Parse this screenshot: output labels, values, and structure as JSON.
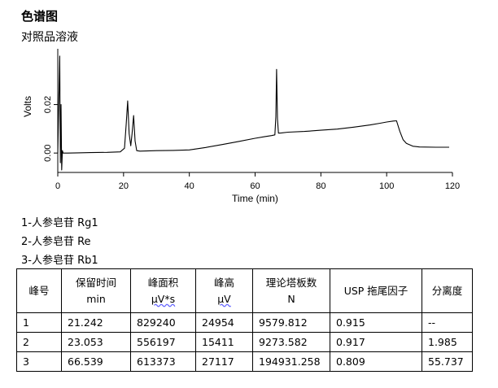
{
  "header": {
    "title": "色谱图",
    "subtitle": "对照品溶液"
  },
  "peak_list": [
    "1-人参皂苷 Rg1",
    "2-人参皂苷 Re",
    "3-人参皂苷 Rb1"
  ],
  "table": {
    "headers": [
      {
        "line1": "峰号",
        "line2": ""
      },
      {
        "line1": "保留时间",
        "line2": "min"
      },
      {
        "line1": "峰面积",
        "line2": "µV*s"
      },
      {
        "line1": "峰高",
        "line2": "µV"
      },
      {
        "line1": "理论塔板数",
        "line2": "N"
      },
      {
        "line1": "USP 拖尾因子",
        "line2": ""
      },
      {
        "line1": "分离度",
        "line2": ""
      }
    ],
    "rows": [
      [
        "1",
        "21.242",
        "829240",
        "24954",
        "9579.812",
        "0.915",
        "--"
      ],
      [
        "2",
        "23.053",
        "556197",
        "15411",
        "9273.582",
        "0.917",
        "1.985"
      ],
      [
        "3",
        "66.539",
        "613373",
        "27117",
        "194931.258",
        "0.809",
        "55.737"
      ]
    ]
  },
  "chart_data": {
    "type": "line",
    "xlabel": "Time (min)",
    "ylabel": "Volts",
    "xlim": [
      0,
      120
    ],
    "ylim": [
      -0.008,
      0.043
    ],
    "xticks": [
      0,
      20,
      40,
      60,
      80,
      100,
      120
    ],
    "xtick_labels": [
      "0",
      "20",
      "40",
      "60",
      "80",
      "100",
      "120"
    ],
    "yticks": [
      0.0,
      0.02
    ],
    "ytick_labels": [
      "0.00",
      "0.02"
    ],
    "grid": false,
    "line_color": "#000000",
    "series": [
      {
        "x": [
          0,
          0.6,
          0.8,
          1.0,
          1.2,
          1.4,
          1.6,
          1.8,
          2.0,
          2.4,
          3,
          6,
          10,
          15,
          19,
          20.3,
          20.8,
          21.242,
          21.7,
          22.2,
          22.6,
          23.053,
          23.5,
          24,
          25,
          30,
          35,
          40,
          45,
          50,
          55,
          60,
          63,
          65,
          66.0,
          66.3,
          66.539,
          66.8,
          67.1,
          68,
          70,
          75,
          80,
          85,
          90,
          95,
          98,
          100,
          102,
          103,
          104,
          105,
          106,
          108,
          110,
          115,
          119
        ],
        "y": [
          0,
          0.04,
          -0.004,
          0.02,
          -0.007,
          0.001,
          0.0,
          0.0,
          0.0,
          0.0,
          0.0,
          0.0001,
          0.0002,
          0.0003,
          0.0005,
          0.002,
          0.012,
          0.0215,
          0.008,
          0.003,
          0.008,
          0.0155,
          0.005,
          0.001,
          0.0008,
          0.001,
          0.0011,
          0.0013,
          0.0023,
          0.0035,
          0.0048,
          0.0061,
          0.0068,
          0.0072,
          0.0075,
          0.015,
          0.0345,
          0.014,
          0.0082,
          0.0083,
          0.0086,
          0.0089,
          0.0094,
          0.0099,
          0.0107,
          0.0116,
          0.0123,
          0.0128,
          0.0132,
          0.0133,
          0.009,
          0.0055,
          0.004,
          0.0028,
          0.0025,
          0.0024,
          0.0024
        ]
      }
    ]
  }
}
